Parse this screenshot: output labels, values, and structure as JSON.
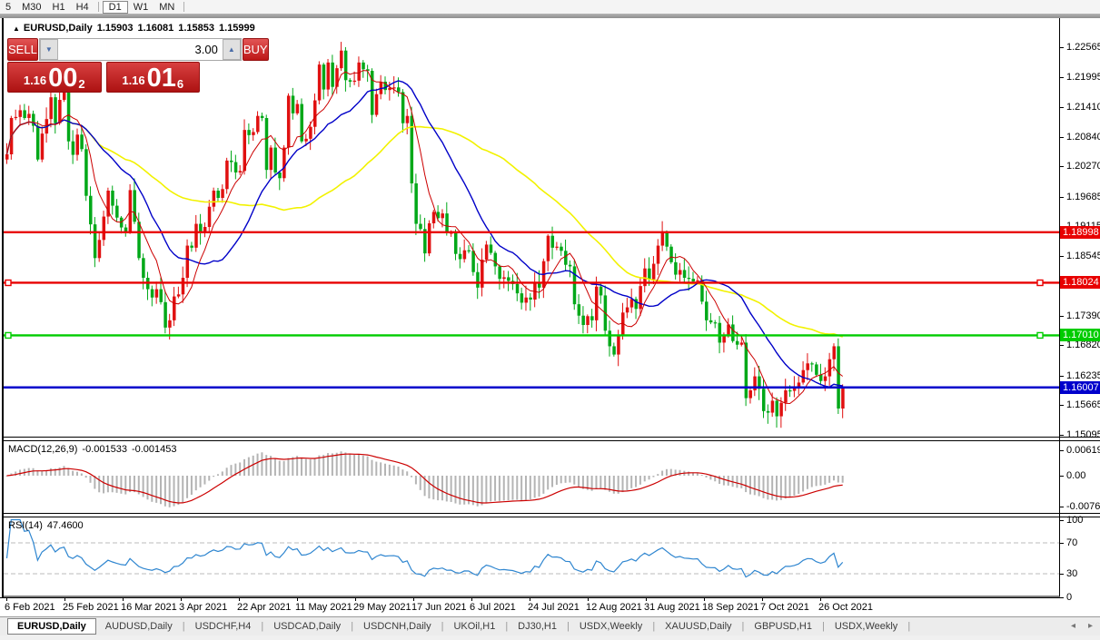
{
  "toolbar": {
    "timeframes": [
      {
        "label": "5"
      },
      {
        "label": "M30"
      },
      {
        "label": "H1"
      },
      {
        "label": "H4",
        "sep_after": true
      },
      {
        "label": "D1",
        "active": true
      },
      {
        "label": "W1"
      },
      {
        "label": "MN",
        "sep_after": true
      }
    ]
  },
  "chart_header": {
    "symbol": "EURUSD,Daily",
    "open": "1.15903",
    "high": "1.16081",
    "low": "1.15853",
    "close": "1.15999"
  },
  "trade_panel": {
    "sell_label": "SELL",
    "buy_label": "BUY",
    "volume": "3.00",
    "sell_price": {
      "small": "1.16",
      "big": "00",
      "sup": "2"
    },
    "buy_price": {
      "small": "1.16",
      "big": "01",
      "sup": "6"
    }
  },
  "chart_data": {
    "type": "candlestick",
    "symbol": "EURUSD",
    "timeframe": "Daily",
    "ylim": [
      1.1501,
      1.2309
    ],
    "grid": false,
    "colors": {
      "up": "#e01010",
      "down": "#00a818",
      "ma_fast": "#cc0000",
      "ma_mid": "#0000c8",
      "ma_slow": "#f2f200",
      "hline_red": "#e80000",
      "hline_green": "#00cc00",
      "hline_blue": "#0000cc",
      "macd_hist": "#b4b4b4",
      "macd_signal": "#cc0000",
      "rsi_line": "#2f86d0",
      "rsi_levels": "#bbbbbb"
    },
    "y_ticks": [
      "1.22565",
      "1.21995",
      "1.21410",
      "1.20840",
      "1.20270",
      "1.19685",
      "1.19115",
      "1.18545",
      "1.17975",
      "1.17390",
      "1.16820",
      "1.16235",
      "1.15665",
      "1.15095"
    ],
    "x_labels": [
      "6 Feb 2021",
      "25 Feb 2021",
      "16 Mar 2021",
      "3 Apr 2021",
      "22 Apr 2021",
      "11 May 2021",
      "29 May 2021",
      "17 Jun 2021",
      "6 Jul 2021",
      "24 Jul 2021",
      "12 Aug 2021",
      "31 Aug 2021",
      "18 Sep 2021",
      "7 Oct 2021",
      "26 Oct 2021"
    ],
    "hlines": [
      {
        "price": 1.18998,
        "label": "1.18998",
        "color": "#e80000",
        "selected": false
      },
      {
        "price": 1.18024,
        "label": "1.18024",
        "color": "#e80000",
        "selected": true
      },
      {
        "price": 1.1701,
        "label": "1.17010",
        "color": "#00cc00",
        "selected": true
      },
      {
        "price": 1.16007,
        "label": "1.16007",
        "color": "#0000cc",
        "selected": false
      }
    ],
    "closes": [
      1.205,
      1.212,
      1.2122,
      1.2135,
      1.212,
      1.2128,
      1.2105,
      1.204,
      1.209,
      1.2118,
      1.216,
      1.211,
      1.2155,
      1.2175,
      1.2075,
      1.2049,
      1.2088,
      1.206,
      1.197,
      1.1915,
      1.185,
      1.1885,
      1.193,
      1.198,
      1.1951,
      1.1928,
      1.1909,
      1.19,
      1.1981,
      1.192,
      1.185,
      1.1812,
      1.179,
      1.1774,
      1.179,
      1.1765,
      1.1716,
      1.173,
      1.1776,
      1.178,
      1.1812,
      1.1874,
      1.187,
      1.1916,
      1.1898,
      1.191,
      1.1949,
      1.198,
      1.1966,
      1.1983,
      1.2038,
      1.2035,
      1.2015,
      1.2018,
      1.2097,
      1.2087,
      1.2093,
      1.2124,
      1.212,
      1.202,
      1.2063,
      1.2015,
      1.2004,
      1.2063,
      1.2163,
      1.2129,
      1.2147,
      1.2075,
      1.208,
      1.2103,
      1.2154,
      1.2223,
      1.2175,
      1.2227,
      1.218,
      1.2216,
      1.225,
      1.2193,
      1.219,
      1.2192,
      1.2227,
      1.2214,
      1.2211,
      1.2126,
      1.2166,
      1.219,
      1.2174,
      1.2178,
      1.2179,
      1.217,
      1.211,
      1.2124,
      1.1994,
      1.1916,
      1.1906,
      1.1859,
      1.1917,
      1.1939,
      1.1927,
      1.1936,
      1.1898,
      1.1899,
      1.1858,
      1.1848,
      1.1865,
      1.1864,
      1.1823,
      1.1793,
      1.1847,
      1.1876,
      1.186,
      1.1834,
      1.181,
      1.1813,
      1.1806,
      1.18,
      1.1782,
      1.1764,
      1.1774,
      1.177,
      1.1804,
      1.1793,
      1.1844,
      1.1893,
      1.187,
      1.1872,
      1.1864,
      1.1837,
      1.1834,
      1.1761,
      1.1739,
      1.1721,
      1.1738,
      1.173,
      1.1795,
      1.1778,
      1.171,
      1.168,
      1.1664,
      1.17,
      1.1745,
      1.1755,
      1.1771,
      1.1752,
      1.1796,
      1.183,
      1.1809,
      1.1839,
      1.1874,
      1.19,
      1.1872,
      1.1842,
      1.1818,
      1.1827,
      1.1812,
      1.181,
      1.1805,
      1.1807,
      1.1766,
      1.173,
      1.1726,
      1.1725,
      1.1687,
      1.17,
      1.1722,
      1.169,
      1.1683,
      1.1687,
      1.158,
      1.1595,
      1.1622,
      1.1598,
      1.1555,
      1.1552,
      1.1575,
      1.1545,
      1.1571,
      1.1595,
      1.1594,
      1.16,
      1.161,
      1.1634,
      1.1647,
      1.1645,
      1.1625,
      1.1613,
      1.1622,
      1.1655,
      1.168,
      1.156,
      1.16
    ],
    "macd": {
      "name": "MACD(12,26,9)",
      "params": [
        12,
        26,
        9
      ],
      "values": [
        "-0.001533",
        "-0.001453"
      ],
      "ticks": [
        "0.006193",
        "0.00",
        "-0.007621"
      ]
    },
    "rsi": {
      "name": "RSI(14)",
      "period": 14,
      "value": "47.4600",
      "ticks": [
        "100",
        "70",
        "30",
        "0"
      ],
      "levels": [
        70,
        30
      ]
    }
  },
  "tabs": {
    "items": [
      {
        "label": "EURUSD,Daily",
        "active": true
      },
      {
        "label": "AUDUSD,Daily"
      },
      {
        "label": "USDCHF,H4"
      },
      {
        "label": "USDCAD,Daily"
      },
      {
        "label": "USDCNH,Daily"
      },
      {
        "label": "UKOil,H1"
      },
      {
        "label": "DJ30,H1"
      },
      {
        "label": "USDX,Weekly"
      },
      {
        "label": "XAUUSD,Daily"
      },
      {
        "label": "GBPUSD,H1"
      },
      {
        "label": "USDX,Weekly"
      }
    ],
    "scroll_left": "◂",
    "scroll_right": "▸"
  }
}
